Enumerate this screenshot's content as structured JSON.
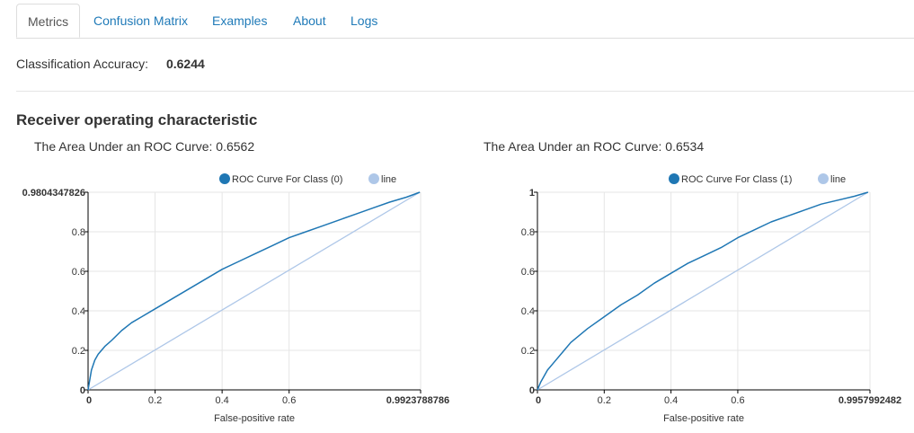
{
  "tabs": [
    {
      "label": "Metrics"
    },
    {
      "label": "Confusion Matrix"
    },
    {
      "label": "Examples"
    },
    {
      "label": "About"
    },
    {
      "label": "Logs"
    }
  ],
  "accuracy": {
    "label": "Classification Accuracy:",
    "value": "0.6244"
  },
  "section_title": "Receiver operating characteristic",
  "colors": {
    "roc": "#1f77b4",
    "line": "#aec7e8",
    "grid": "#e5e5e5",
    "tab_link": "#1f7ab8"
  },
  "chart_data": [
    {
      "type": "line",
      "auc_text": "The Area Under an ROC Curve: 0.6562",
      "xlabel": "False-positive rate",
      "ylabel": "",
      "xlim": [
        0,
        0.9923788786
      ],
      "ylim": [
        0,
        1
      ],
      "x_ticks": [
        "0",
        "0.2",
        "0.4",
        "0.6",
        "0.99237887866"
      ],
      "y_ticks": [
        "0",
        "0.2",
        "0.4",
        "0.6",
        "0.8",
        "0.9804347826"
      ],
      "legend": [
        "ROC Curve For Class (0)",
        "line"
      ],
      "series": [
        {
          "name": "ROC Curve For Class (0)",
          "x": [
            0,
            0.005,
            0.01,
            0.02,
            0.03,
            0.05,
            0.07,
            0.1,
            0.13,
            0.16,
            0.2,
            0.25,
            0.3,
            0.35,
            0.4,
            0.45,
            0.5,
            0.55,
            0.6,
            0.65,
            0.7,
            0.75,
            0.8,
            0.85,
            0.9,
            0.95,
            0.99
          ],
          "y": [
            0,
            0.05,
            0.1,
            0.15,
            0.18,
            0.22,
            0.25,
            0.3,
            0.34,
            0.37,
            0.41,
            0.46,
            0.51,
            0.56,
            0.61,
            0.65,
            0.69,
            0.73,
            0.77,
            0.8,
            0.83,
            0.86,
            0.89,
            0.92,
            0.95,
            0.975,
            1
          ]
        },
        {
          "name": "line",
          "x": [
            0,
            0.99
          ],
          "y": [
            0,
            1
          ]
        }
      ]
    },
    {
      "type": "line",
      "auc_text": "The Area Under an ROC Curve: 0.6534",
      "xlabel": "False-positive rate",
      "ylabel": "",
      "xlim": [
        0,
        0.9957992482
      ],
      "ylim": [
        0,
        1
      ],
      "x_ticks": [
        "0",
        "0.2",
        "0.4",
        "0.6",
        "0.9957992482"
      ],
      "y_ticks": [
        "0",
        "0.2",
        "0.4",
        "0.6",
        "0.8",
        "1"
      ],
      "legend": [
        "ROC Curve For Class (1)",
        "line"
      ],
      "series": [
        {
          "name": "ROC Curve For Class (1)",
          "x": [
            0,
            0.01,
            0.03,
            0.05,
            0.08,
            0.1,
            0.15,
            0.2,
            0.25,
            0.3,
            0.35,
            0.4,
            0.45,
            0.5,
            0.55,
            0.6,
            0.65,
            0.7,
            0.75,
            0.8,
            0.85,
            0.9,
            0.95,
            0.99
          ],
          "y": [
            0,
            0.04,
            0.1,
            0.14,
            0.2,
            0.24,
            0.31,
            0.37,
            0.43,
            0.48,
            0.54,
            0.59,
            0.64,
            0.68,
            0.72,
            0.77,
            0.81,
            0.85,
            0.88,
            0.91,
            0.94,
            0.96,
            0.98,
            1
          ]
        },
        {
          "name": "line",
          "x": [
            0,
            0.99
          ],
          "y": [
            0,
            1
          ]
        }
      ]
    }
  ]
}
